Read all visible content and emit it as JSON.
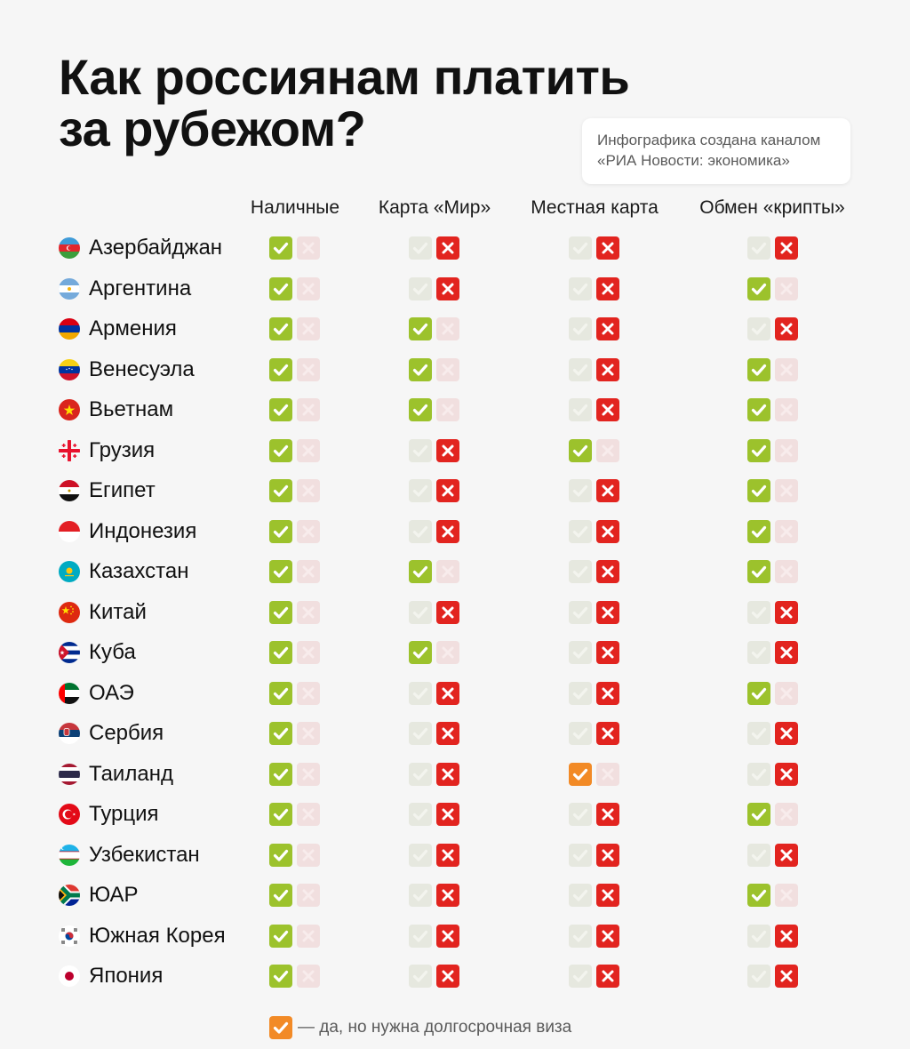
{
  "title": {
    "line1": "Как россиянам платить",
    "line2": "за рубежом?"
  },
  "credit": {
    "line1": "Инфографика создана каналом",
    "line2": "«РИА Новости: экономика»"
  },
  "columns": [
    "Наличные",
    "Карта «Мир»",
    "Местная карта",
    "Обмен «крипты»"
  ],
  "status_legend": {
    "yes": "green check",
    "no": "red cross",
    "long_visa": "orange check"
  },
  "colors": {
    "yes": "#9cc22c",
    "no": "#e2241f",
    "long_visa": "#f28a26"
  },
  "countries": [
    {
      "name": "Азербайджан",
      "flag": "azerbaijan-flag-icon",
      "values": [
        "yes",
        "no",
        "no",
        "no"
      ]
    },
    {
      "name": "Аргентина",
      "flag": "argentina-flag-icon",
      "values": [
        "yes",
        "no",
        "no",
        "yes"
      ]
    },
    {
      "name": "Армения",
      "flag": "armenia-flag-icon",
      "values": [
        "yes",
        "yes",
        "no",
        "no"
      ]
    },
    {
      "name": "Венесуэла",
      "flag": "venezuela-flag-icon",
      "values": [
        "yes",
        "yes",
        "no",
        "yes"
      ]
    },
    {
      "name": "Вьетнам",
      "flag": "vietnam-flag-icon",
      "values": [
        "yes",
        "yes",
        "no",
        "yes"
      ]
    },
    {
      "name": "Грузия",
      "flag": "georgia-flag-icon",
      "values": [
        "yes",
        "no",
        "yes",
        "yes"
      ]
    },
    {
      "name": "Египет",
      "flag": "egypt-flag-icon",
      "values": [
        "yes",
        "no",
        "no",
        "yes"
      ]
    },
    {
      "name": "Индонезия",
      "flag": "indonesia-flag-icon",
      "values": [
        "yes",
        "no",
        "no",
        "yes"
      ]
    },
    {
      "name": "Казахстан",
      "flag": "kazakhstan-flag-icon",
      "values": [
        "yes",
        "yes",
        "no",
        "yes"
      ]
    },
    {
      "name": "Китай",
      "flag": "china-flag-icon",
      "values": [
        "yes",
        "no",
        "no",
        "no"
      ]
    },
    {
      "name": "Куба",
      "flag": "cuba-flag-icon",
      "values": [
        "yes",
        "yes",
        "no",
        "no"
      ]
    },
    {
      "name": "ОАЭ",
      "flag": "uae-flag-icon",
      "values": [
        "yes",
        "no",
        "no",
        "yes"
      ]
    },
    {
      "name": "Сербия",
      "flag": "serbia-flag-icon",
      "values": [
        "yes",
        "no",
        "no",
        "no"
      ]
    },
    {
      "name": "Таиланд",
      "flag": "thailand-flag-icon",
      "values": [
        "yes",
        "no",
        "long_visa",
        "no"
      ]
    },
    {
      "name": "Турция",
      "flag": "turkey-flag-icon",
      "values": [
        "yes",
        "no",
        "no",
        "yes"
      ]
    },
    {
      "name": "Узбекистан",
      "flag": "uzbekistan-flag-icon",
      "values": [
        "yes",
        "no",
        "no",
        "no"
      ]
    },
    {
      "name": "ЮАР",
      "flag": "south-africa-flag-icon",
      "values": [
        "yes",
        "no",
        "no",
        "yes"
      ]
    },
    {
      "name": "Южная Корея",
      "flag": "south-korea-flag-icon",
      "values": [
        "yes",
        "no",
        "no",
        "no"
      ]
    },
    {
      "name": "Япония",
      "flag": "japan-flag-icon",
      "values": [
        "yes",
        "no",
        "no",
        "no"
      ]
    }
  ],
  "legend": {
    "text": "— да, но нужна долгосрочная виза"
  }
}
